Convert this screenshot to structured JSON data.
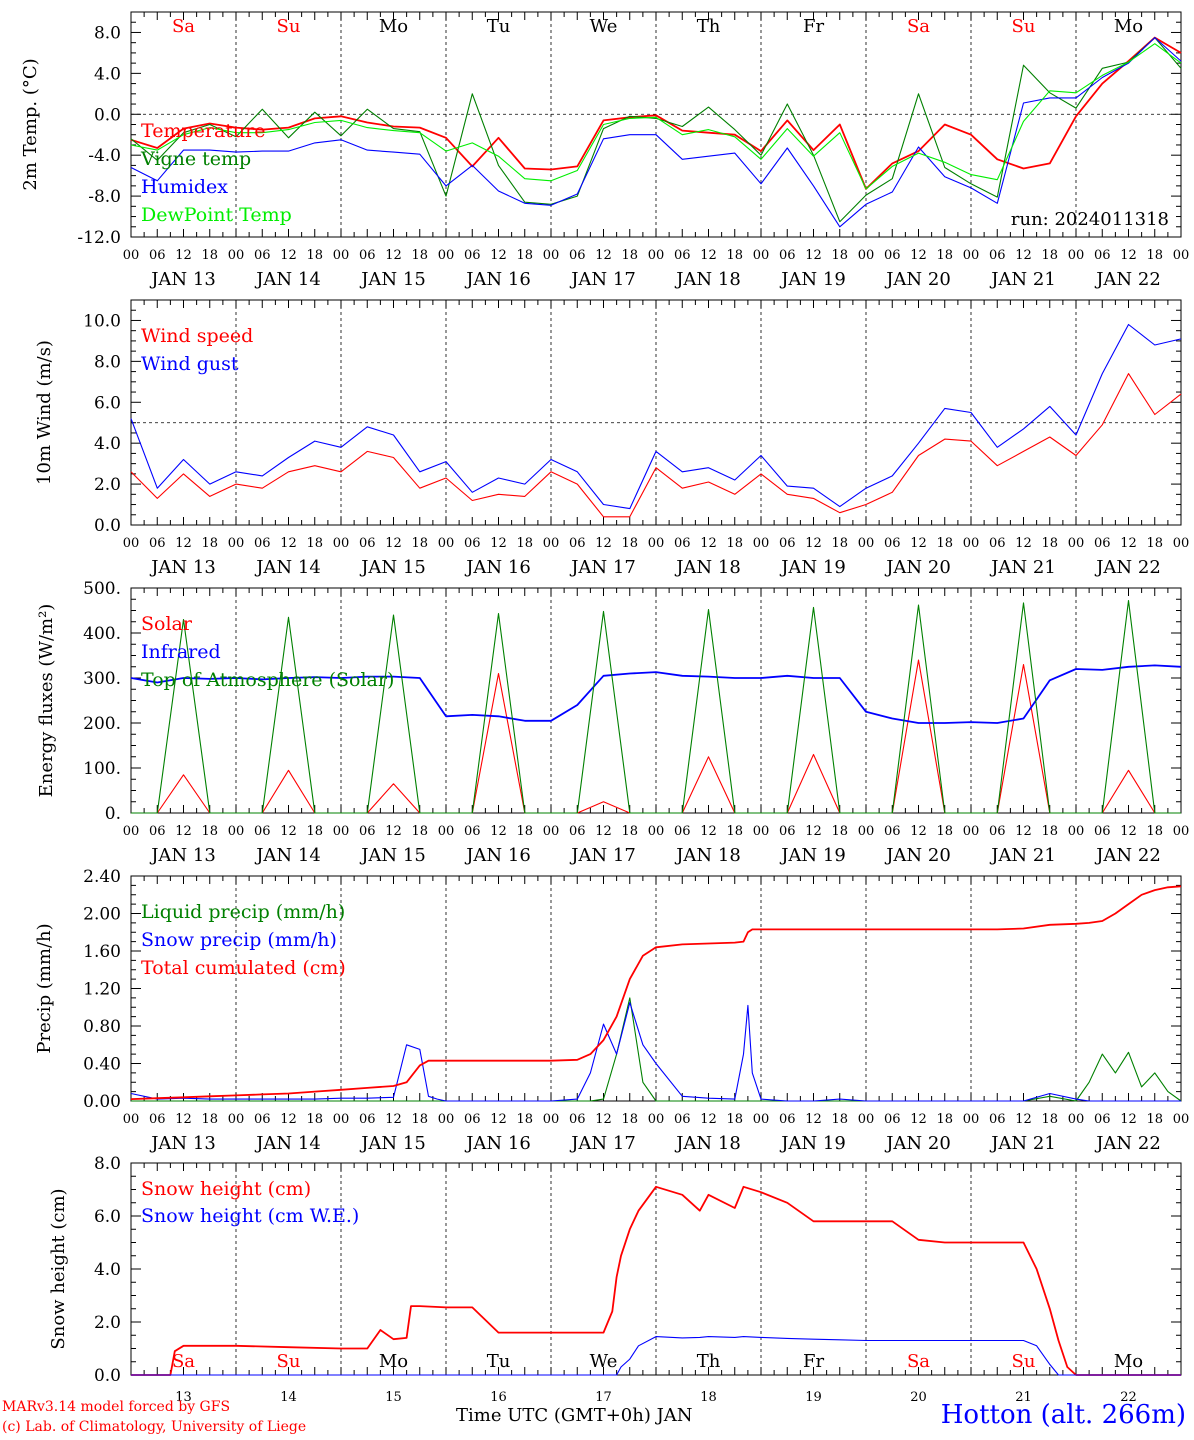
{
  "days_top": [
    {
      "label": "Sa",
      "color": "#ff0000"
    },
    {
      "label": "Su",
      "color": "#ff0000"
    },
    {
      "label": "Mo",
      "color": "#000000"
    },
    {
      "label": "Tu",
      "color": "#000000"
    },
    {
      "label": "We",
      "color": "#000000"
    },
    {
      "label": "Th",
      "color": "#000000"
    },
    {
      "label": "Fr",
      "color": "#000000"
    },
    {
      "label": "Sa",
      "color": "#ff0000"
    },
    {
      "label": "Su",
      "color": "#ff0000"
    },
    {
      "label": "Mo",
      "color": "#000000"
    }
  ],
  "date_labels": [
    "JAN 13",
    "JAN 14",
    "JAN 15",
    "JAN 16",
    "JAN 17",
    "JAN 18",
    "JAN 19",
    "JAN 20",
    "JAN 21",
    "JAN 22"
  ],
  "hour_labels": [
    "00",
    "06",
    "12",
    "18"
  ],
  "run_label": "run: 2024011318",
  "footer": {
    "model_line": "MARv3.14 model forced by GFS",
    "lab_line": "(c) Lab. of Climatology, University of Liege",
    "xlabel": "Time UTC (GMT+0h) JAN",
    "station": "Hotton (alt. 266m)",
    "day_numbers": [
      "13",
      "14",
      "15",
      "16",
      "17",
      "18",
      "19",
      "20",
      "21",
      "22"
    ]
  },
  "colors": {
    "red": "#ff0000",
    "green": "#008000",
    "blue": "#0000ff",
    "lightgreen": "#00ee00",
    "axis": "#000000"
  },
  "chart_data": [
    {
      "type": "line",
      "ylabel": "2m Temp. (°C)",
      "ylim": [
        -12,
        10
      ],
      "yticks": [
        "8.0",
        "4.0",
        "0.0",
        "-4.0",
        "-8.0",
        "-12.0"
      ],
      "ytick_values": [
        8,
        4,
        0,
        -4,
        -8,
        -12
      ],
      "ref_line": 0,
      "x_hours": [
        0,
        6,
        12,
        18,
        24,
        30,
        36,
        42,
        48,
        54,
        60,
        66,
        72,
        78,
        84,
        90,
        96,
        102,
        108,
        114,
        120,
        126,
        132,
        138,
        144,
        150,
        156,
        162,
        168,
        174,
        180,
        186,
        192,
        198,
        204,
        210,
        216,
        222,
        228,
        234,
        240
      ],
      "series": [
        {
          "name": "Temperature",
          "color": "#ff0000",
          "values": [
            -2.5,
            -3.3,
            -1.4,
            -0.9,
            -1.3,
            -1.5,
            -1.3,
            -0.4,
            -0.2,
            -0.8,
            -1.2,
            -1.3,
            -2.3,
            -5.1,
            -2.3,
            -5.3,
            -5.4,
            -5.1,
            -0.6,
            -0.3,
            -0.1,
            -1.6,
            -1.8,
            -2.0,
            -3.6,
            -0.6,
            -3.5,
            -1.0,
            -7.3,
            -4.8,
            -3.6,
            -1.0,
            -2.0,
            -4.4,
            -5.3,
            -4.8,
            -0.2,
            3.0,
            5.2,
            7.5,
            6.0
          ]
        },
        {
          "name": "Vigne temp",
          "color": "#008000",
          "values": [
            -2.4,
            -4.5,
            -1.8,
            -1.0,
            -2.2,
            0.5,
            -2.3,
            0.2,
            -2.1,
            0.5,
            -1.4,
            -1.7,
            -8.0,
            2.0,
            -5.0,
            -8.6,
            -8.8,
            -8.0,
            -1.4,
            -0.2,
            -0.4,
            -1.2,
            0.7,
            -1.5,
            -4.0,
            1.0,
            -4.0,
            -10.5,
            -7.9,
            -6.3,
            2.0,
            -5.2,
            -6.8,
            -8.1,
            4.8,
            2.1,
            0.6,
            4.5,
            5.1,
            7.5,
            4.5
          ]
        },
        {
          "name": "Humidex",
          "color": "#0000ff",
          "values": [
            -5.2,
            -6.5,
            -3.5,
            -3.5,
            -3.7,
            -3.6,
            -3.6,
            -2.8,
            -2.5,
            -3.5,
            -3.7,
            -3.9,
            -7.0,
            -5.0,
            -7.5,
            -8.7,
            -8.9,
            -7.8,
            -2.4,
            -2.0,
            -2.0,
            -4.4,
            -4.1,
            -3.8,
            -6.8,
            -3.3,
            -7.0,
            -11.0,
            -8.8,
            -7.6,
            -3.2,
            -6.1,
            -7.2,
            -8.7,
            1.1,
            1.6,
            1.6,
            3.6,
            5.0,
            7.5,
            5.2
          ]
        },
        {
          "name": "DewPoint Temp",
          "color": "#00ee00",
          "values": [
            -3.0,
            -3.5,
            -2.0,
            -1.3,
            -1.8,
            -1.8,
            -1.5,
            -0.8,
            -0.6,
            -1.3,
            -1.6,
            -1.8,
            -3.6,
            -2.8,
            -4.1,
            -6.3,
            -6.5,
            -5.5,
            -1.0,
            -0.4,
            -0.3,
            -2.0,
            -1.5,
            -2.2,
            -4.4,
            -1.4,
            -4.1,
            -1.8,
            -7.3,
            -5.1,
            -3.8,
            -4.7,
            -5.9,
            -6.4,
            -0.7,
            2.3,
            2.1,
            3.8,
            5.1,
            6.9,
            5.0
          ]
        }
      ]
    },
    {
      "type": "line",
      "ylabel": "10m Wind (m/s)",
      "ylim": [
        0,
        11
      ],
      "yticks": [
        "10.0",
        "8.0",
        "6.0",
        "4.0",
        "2.0",
        "0.0"
      ],
      "ytick_values": [
        10,
        8,
        6,
        4,
        2,
        0
      ],
      "ref_line": 5,
      "x_hours": [
        0,
        6,
        12,
        18,
        24,
        30,
        36,
        42,
        48,
        54,
        60,
        66,
        72,
        78,
        84,
        90,
        96,
        102,
        108,
        114,
        120,
        126,
        132,
        138,
        144,
        150,
        156,
        162,
        168,
        174,
        180,
        186,
        192,
        198,
        204,
        210,
        216,
        222,
        228,
        234,
        240
      ],
      "series": [
        {
          "name": "Wind speed",
          "color": "#ff0000",
          "values": [
            2.6,
            1.3,
            2.5,
            1.4,
            2.0,
            1.8,
            2.6,
            2.9,
            2.6,
            3.6,
            3.3,
            1.8,
            2.3,
            1.2,
            1.5,
            1.4,
            2.6,
            2.0,
            0.4,
            0.4,
            2.8,
            1.8,
            2.1,
            1.5,
            2.5,
            1.5,
            1.3,
            0.6,
            1.0,
            1.6,
            3.4,
            4.2,
            4.1,
            2.9,
            3.6,
            4.3,
            3.4,
            4.9,
            7.4,
            5.4,
            6.4
          ]
        },
        {
          "name": "Wind gust",
          "color": "#0000ff",
          "values": [
            5.2,
            1.8,
            3.2,
            2.0,
            2.6,
            2.4,
            3.3,
            4.1,
            3.8,
            4.8,
            4.4,
            2.6,
            3.1,
            1.6,
            2.3,
            2.0,
            3.2,
            2.6,
            1.0,
            0.8,
            3.6,
            2.6,
            2.8,
            2.2,
            3.4,
            1.9,
            1.8,
            0.9,
            1.8,
            2.4,
            4.0,
            5.7,
            5.5,
            3.8,
            4.7,
            5.8,
            4.4,
            7.4,
            9.8,
            8.8,
            9.1
          ]
        }
      ]
    },
    {
      "type": "line",
      "ylabel": "Energy fluxes (W/m²)",
      "ylim": [
        0,
        500
      ],
      "yticks": [
        "500.",
        "400.",
        "300.",
        "200.",
        "100.",
        "0."
      ],
      "ytick_values": [
        500,
        400,
        300,
        200,
        100,
        0
      ],
      "x_hours": [
        0,
        6,
        12,
        18,
        24,
        30,
        36,
        42,
        48,
        54,
        60,
        66,
        72,
        78,
        84,
        90,
        96,
        102,
        108,
        114,
        120,
        126,
        132,
        138,
        144,
        150,
        156,
        162,
        168,
        174,
        180,
        186,
        192,
        198,
        204,
        210,
        216,
        222,
        228,
        234,
        240
      ],
      "series": [
        {
          "name": "Solar",
          "color": "#ff0000",
          "values": [
            0,
            0,
            85,
            0,
            0,
            0,
            95,
            0,
            0,
            0,
            65,
            0,
            0,
            0,
            310,
            0,
            0,
            0,
            25,
            0,
            0,
            0,
            125,
            0,
            0,
            0,
            130,
            0,
            0,
            0,
            340,
            0,
            0,
            0,
            330,
            0,
            0,
            0,
            95,
            0,
            0
          ]
        },
        {
          "name": "Infrared",
          "color": "#0000ff",
          "values": [
            300,
            290,
            300,
            298,
            300,
            297,
            300,
            302,
            300,
            303,
            303,
            300,
            215,
            218,
            215,
            205,
            205,
            240,
            305,
            310,
            313,
            305,
            303,
            300,
            300,
            305,
            300,
            300,
            225,
            210,
            200,
            200,
            202,
            200,
            210,
            295,
            320,
            318,
            325,
            328,
            325
          ]
        },
        {
          "name": "Top of Atmosphere (Solar)",
          "color": "#008000",
          "values": [
            0,
            0,
            430,
            0,
            0,
            0,
            435,
            0,
            0,
            0,
            440,
            0,
            0,
            0,
            443,
            0,
            0,
            0,
            448,
            0,
            0,
            0,
            452,
            0,
            0,
            0,
            457,
            0,
            0,
            0,
            462,
            0,
            0,
            0,
            467,
            0,
            0,
            0,
            472,
            0,
            0
          ]
        }
      ]
    },
    {
      "type": "line",
      "ylabel": "Precip (mm/h)",
      "ylim": [
        0,
        2.4
      ],
      "yticks": [
        "2.40",
        "2.00",
        "1.60",
        "1.20",
        "0.80",
        "0.40",
        "0.00"
      ],
      "ytick_values": [
        2.4,
        2.0,
        1.6,
        1.2,
        0.8,
        0.4,
        0.0
      ],
      "x_hours": [
        0,
        6,
        12,
        18,
        24,
        30,
        36,
        42,
        48,
        54,
        60,
        63,
        66,
        68,
        70,
        72,
        78,
        84,
        90,
        96,
        102,
        105,
        108,
        111,
        114,
        117,
        120,
        126,
        132,
        138,
        140,
        141,
        142,
        144,
        150,
        156,
        162,
        168,
        174,
        180,
        186,
        192,
        198,
        204,
        210,
        216,
        219,
        222,
        225,
        228,
        231,
        234,
        237,
        240
      ],
      "series": [
        {
          "name": "Liquid precip (mm/h)",
          "color": "#008000",
          "values": [
            0,
            0,
            0,
            0,
            0,
            0,
            0,
            0,
            0,
            0,
            0,
            0,
            0,
            0,
            0,
            0,
            0,
            0,
            0,
            0,
            0,
            0,
            0.02,
            0.5,
            1.1,
            0.2,
            0,
            0,
            0,
            0,
            0,
            0,
            0,
            0,
            0,
            0,
            0,
            0,
            0,
            0,
            0,
            0,
            0,
            0,
            0.05,
            0,
            0.2,
            0.5,
            0.3,
            0.52,
            0.15,
            0.3,
            0.1,
            0
          ]
        },
        {
          "name": "Snow precip (mm/h)",
          "color": "#0000ff",
          "values": [
            0.08,
            0.02,
            0.03,
            0.02,
            0.02,
            0.02,
            0.02,
            0.02,
            0.03,
            0.03,
            0.04,
            0.6,
            0.55,
            0.05,
            0.02,
            0,
            0,
            0,
            0,
            0,
            0.02,
            0.3,
            0.82,
            0.5,
            1.05,
            0.6,
            0.4,
            0.05,
            0.03,
            0.02,
            0.5,
            1.02,
            0.3,
            0.02,
            0,
            0,
            0.02,
            0,
            0,
            0,
            0,
            0,
            0,
            0,
            0.08,
            0.02,
            0,
            0,
            0,
            0,
            0,
            0,
            0,
            0
          ]
        },
        {
          "name": "Total cumulated (cm)",
          "color": "#ff0000",
          "values": [
            0.02,
            0.03,
            0.04,
            0.05,
            0.06,
            0.07,
            0.08,
            0.1,
            0.12,
            0.14,
            0.16,
            0.2,
            0.38,
            0.43,
            0.43,
            0.43,
            0.43,
            0.43,
            0.43,
            0.43,
            0.44,
            0.5,
            0.65,
            0.9,
            1.3,
            1.55,
            1.64,
            1.67,
            1.68,
            1.69,
            1.7,
            1.8,
            1.83,
            1.83,
            1.83,
            1.83,
            1.83,
            1.83,
            1.83,
            1.83,
            1.83,
            1.83,
            1.83,
            1.84,
            1.88,
            1.89,
            1.9,
            1.92,
            2.0,
            2.1,
            2.2,
            2.25,
            2.28,
            2.29
          ]
        }
      ]
    },
    {
      "type": "line",
      "ylabel": "Snow height (cm)",
      "ylim": [
        0,
        8
      ],
      "yticks": [
        "8.0",
        "6.0",
        "4.0",
        "2.0",
        "0.0"
      ],
      "ytick_values": [
        8,
        6,
        4,
        2,
        0
      ],
      "x_hours": [
        0,
        6,
        9,
        10,
        12,
        24,
        36,
        48,
        54,
        57,
        60,
        63,
        64,
        66,
        72,
        78,
        84,
        90,
        96,
        102,
        108,
        110,
        111,
        112,
        114,
        116,
        120,
        126,
        130,
        132,
        138,
        140,
        144,
        150,
        156,
        162,
        168,
        174,
        180,
        186,
        192,
        198,
        204,
        207,
        210,
        212,
        214,
        216,
        240
      ],
      "series": [
        {
          "name": "Snow height (cm)",
          "color": "#ff0000",
          "values": [
            0,
            0,
            0,
            0.9,
            1.1,
            1.1,
            1.05,
            1.0,
            1.0,
            1.7,
            1.35,
            1.4,
            2.6,
            2.6,
            2.55,
            2.55,
            1.6,
            1.6,
            1.6,
            1.6,
            1.6,
            2.4,
            3.7,
            4.5,
            5.5,
            6.2,
            7.1,
            6.8,
            6.2,
            6.8,
            6.3,
            7.1,
            6.9,
            6.5,
            5.8,
            5.8,
            5.8,
            5.8,
            5.1,
            5.0,
            5.0,
            5.0,
            5.0,
            4.0,
            2.5,
            1.3,
            0.3,
            0,
            0
          ]
        },
        {
          "name": "Snow height (cm W.E.)",
          "color": "#0000ff",
          "values": [
            0,
            0,
            0,
            0,
            0,
            0,
            0,
            0,
            0,
            0,
            0,
            0,
            0,
            0,
            0,
            0,
            0,
            0,
            0,
            0,
            0,
            0,
            0,
            0.3,
            0.6,
            1.1,
            1.45,
            1.4,
            1.42,
            1.45,
            1.42,
            1.45,
            1.42,
            1.38,
            1.35,
            1.33,
            1.3,
            1.3,
            1.3,
            1.3,
            1.3,
            1.3,
            1.3,
            1.1,
            0.4,
            0,
            0,
            0,
            0
          ]
        }
      ]
    }
  ]
}
